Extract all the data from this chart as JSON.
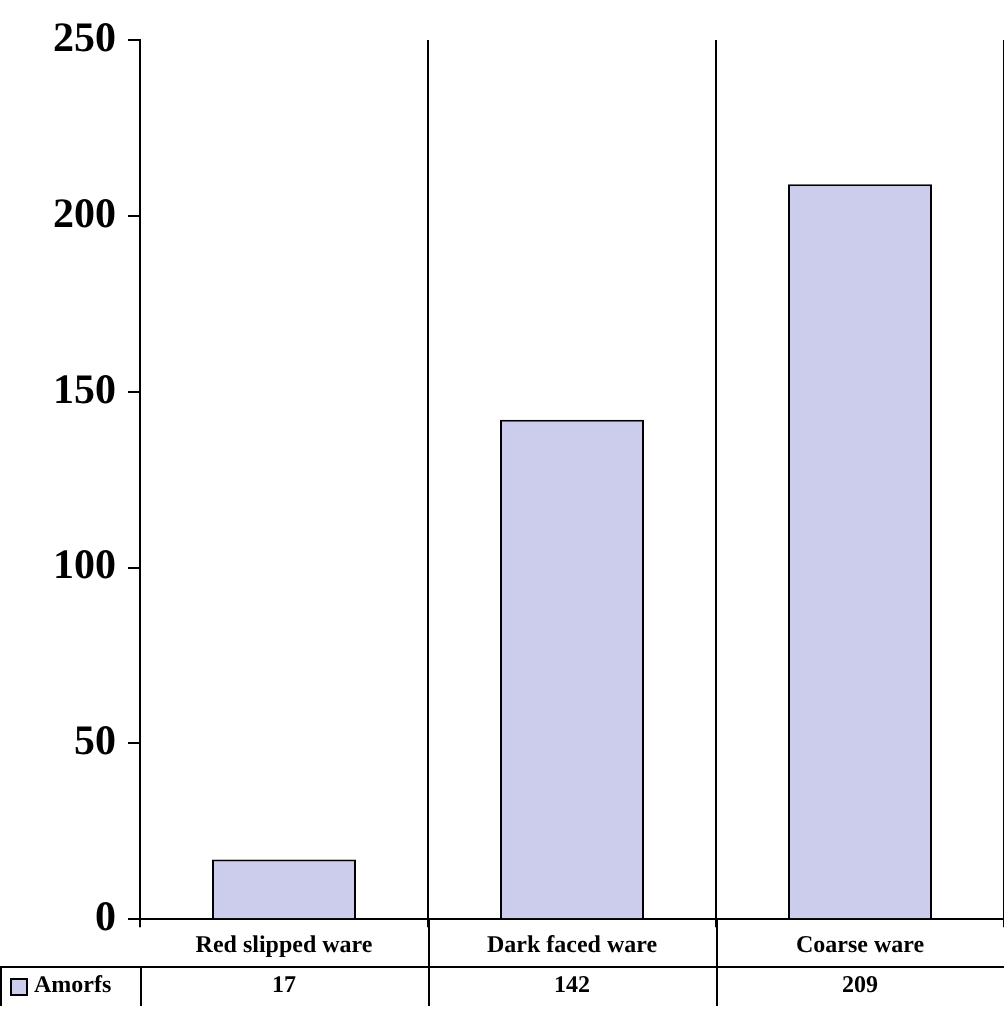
{
  "chart_data": {
    "type": "bar",
    "categories": [
      "Red slipped ware",
      "Dark faced ware",
      "Coarse ware"
    ],
    "series": [
      {
        "name": "Amorfs",
        "color": "#ccccec",
        "values": [
          17,
          142,
          209
        ]
      }
    ],
    "ylim": [
      0,
      250
    ],
    "yticks": [
      0,
      50,
      100,
      150,
      200,
      250
    ],
    "grid": "x",
    "legend": "bottom left",
    "data_labels": true
  }
}
